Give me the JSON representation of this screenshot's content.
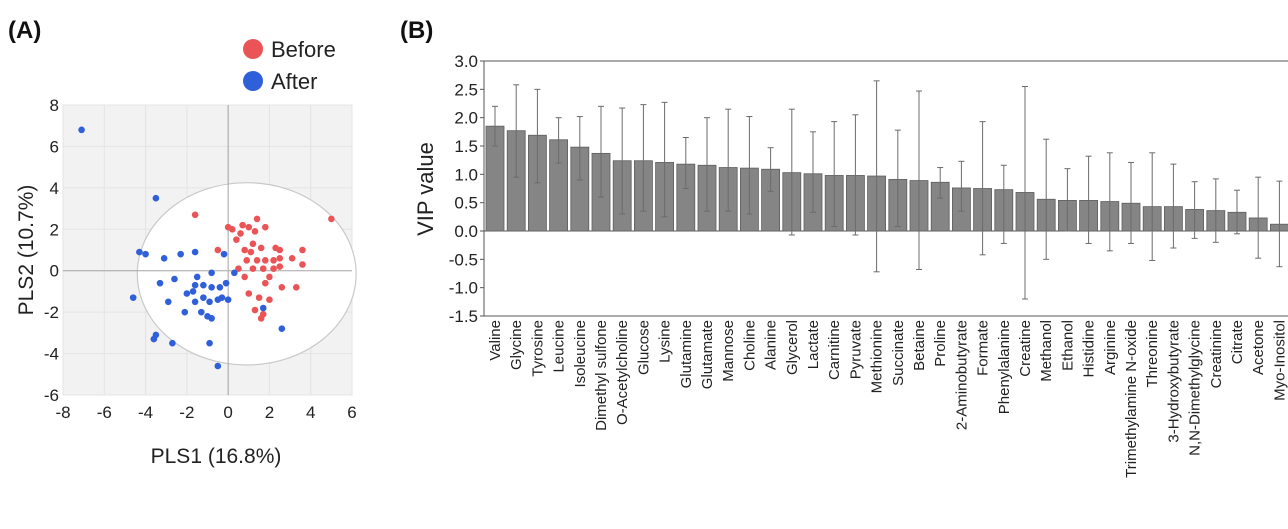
{
  "panels": {
    "a_label": "(A)",
    "b_label": "(B)"
  },
  "colors": {
    "before": "#EB5456",
    "after": "#2F5FD9",
    "bar": "#858585",
    "plot_bg": "#F2F2F2"
  },
  "chart_data": [
    {
      "type": "scatter",
      "xlabel": "PLS1 (16.8%)",
      "ylabel": "PLS2 (10.7%)",
      "xlim": [
        -8,
        6
      ],
      "ylim": [
        -6,
        8
      ],
      "x_ticks": [
        "-8",
        "-6",
        "-4",
        "-2",
        "0",
        "2",
        "4",
        "6"
      ],
      "y_ticks": [
        "-6",
        "-4",
        "-2",
        "0",
        "2",
        "4",
        "6",
        "8"
      ],
      "legend": {
        "position": "top-right"
      },
      "ellipse": {
        "cx": 0.9,
        "cy": -0.15,
        "rx": 5.3,
        "ry": 4.4
      },
      "series": [
        {
          "name": "Before",
          "points": [
            [
              -1.6,
              2.7
            ],
            [
              -0.5,
              1.0
            ],
            [
              0,
              2.1
            ],
            [
              0.2,
              2.0
            ],
            [
              0.7,
              2.2
            ],
            [
              0.6,
              1.8
            ],
            [
              1.0,
              2.1
            ],
            [
              1.4,
              2.5
            ],
            [
              1.3,
              1.9
            ],
            [
              1.8,
              2.1
            ],
            [
              0.4,
              1.5
            ],
            [
              1.2,
              1.3
            ],
            [
              1.6,
              1.1
            ],
            [
              2.3,
              1.1
            ],
            [
              2.5,
              1.0
            ],
            [
              3.6,
              1.0
            ],
            [
              5.0,
              2.5
            ],
            [
              0.8,
              1.0
            ],
            [
              1.1,
              0.9
            ],
            [
              1.8,
              0.5
            ],
            [
              1.4,
              0.5
            ],
            [
              0.9,
              0.5
            ],
            [
              2.2,
              0.5
            ],
            [
              2.5,
              0.6
            ],
            [
              3.1,
              0.6
            ],
            [
              3.6,
              0.3
            ],
            [
              0.5,
              0.1
            ],
            [
              1.2,
              0.1
            ],
            [
              1.7,
              0.1
            ],
            [
              2.2,
              0.1
            ],
            [
              2.5,
              0.2
            ],
            [
              0.8,
              -0.3
            ],
            [
              2.0,
              -0.3
            ],
            [
              3.3,
              -0.8
            ],
            [
              1.8,
              -0.6
            ],
            [
              2.6,
              -0.8
            ],
            [
              1.0,
              -1.1
            ],
            [
              1.5,
              -1.3
            ],
            [
              2.0,
              -1.4
            ],
            [
              1.3,
              -1.9
            ],
            [
              1.7,
              -2.1
            ],
            [
              1.6,
              -2.3
            ]
          ]
        },
        {
          "name": "After",
          "points": [
            [
              -7.1,
              6.8
            ],
            [
              -3.5,
              3.5
            ],
            [
              -4.3,
              0.9
            ],
            [
              -4.0,
              0.8
            ],
            [
              -3.1,
              0.6
            ],
            [
              -2.3,
              0.8
            ],
            [
              -1.6,
              0.9
            ],
            [
              -0.2,
              0.8
            ],
            [
              -3.3,
              -0.6
            ],
            [
              -2.6,
              -0.4
            ],
            [
              -1.5,
              -0.3
            ],
            [
              -0.8,
              -0.1
            ],
            [
              -2.0,
              -1.1
            ],
            [
              -1.6,
              -0.7
            ],
            [
              -1.2,
              -0.7
            ],
            [
              -0.8,
              -0.8
            ],
            [
              -0.4,
              -0.8
            ],
            [
              -0.1,
              -0.6
            ],
            [
              0.3,
              -0.1
            ],
            [
              -1.7,
              -1.0
            ],
            [
              -1.2,
              -1.3
            ],
            [
              -1.6,
              -1.5
            ],
            [
              -0.9,
              -1.5
            ],
            [
              -0.5,
              -1.4
            ],
            [
              -0.3,
              -1.3
            ],
            [
              0,
              -1.4
            ],
            [
              -4.6,
              -1.3
            ],
            [
              -2.9,
              -1.5
            ],
            [
              -2.1,
              -2.0
            ],
            [
              -1.0,
              -2.2
            ],
            [
              -0.8,
              -2.3
            ],
            [
              -1.3,
              -2.0
            ],
            [
              1.7,
              -1.8
            ],
            [
              2.6,
              -2.8
            ],
            [
              -3.5,
              -3.1
            ],
            [
              -3.6,
              -3.3
            ],
            [
              -2.7,
              -3.5
            ],
            [
              -0.9,
              -3.5
            ],
            [
              -0.5,
              -4.6
            ]
          ]
        }
      ]
    },
    {
      "type": "bar",
      "ylabel": "VIP value",
      "ylim": [
        -1.5,
        3.0
      ],
      "y_ticks": [
        "3.0",
        "2.5",
        "2.0",
        "1.5",
        "1.0",
        "0.5",
        "0.0",
        "-0.5",
        "-1.0",
        "-1.5"
      ],
      "categories": [
        "Valine",
        "Glycine",
        "Tyrosine",
        "Leucine",
        "Isoleucine",
        "Dimethyl sulfone",
        "O-Acetylcholine",
        "Glucose",
        "Lysine",
        "Glutamine",
        "Glutamate",
        "Mannose",
        "Choline",
        "Alanine",
        "Glycerol",
        "Lactate",
        "Carnitine",
        "Pyruvate",
        "Methionine",
        "Succinate",
        "Betaine",
        "Proline",
        "2-Aminobutyrate",
        "Formate",
        "Phenylalanine",
        "Creatine",
        "Methanol",
        "Ethanol",
        "Histidine",
        "Arginine",
        "Trimethylamine N-oxide",
        "Threonine",
        "3-Hydroxybutyrate",
        "N,N-Dimethylglycine",
        "Creatinine",
        "Citrate",
        "Acetone",
        "Myo-Inositol"
      ],
      "values": [
        1.85,
        1.77,
        1.69,
        1.61,
        1.48,
        1.37,
        1.24,
        1.24,
        1.21,
        1.18,
        1.16,
        1.12,
        1.11,
        1.09,
        1.03,
        1.01,
        0.98,
        0.98,
        0.97,
        0.91,
        0.89,
        0.86,
        0.76,
        0.75,
        0.73,
        0.68,
        0.56,
        0.54,
        0.54,
        0.52,
        0.49,
        0.43,
        0.43,
        0.38,
        0.36,
        0.33,
        0.23,
        0.12
      ],
      "err_low": [
        1.5,
        0.95,
        0.85,
        1.2,
        0.9,
        0.6,
        0.3,
        0.35,
        0.25,
        0.75,
        0.35,
        0.35,
        0.3,
        0.7,
        -0.07,
        0.33,
        0.08,
        -0.07,
        -0.72,
        0.08,
        -0.68,
        0.58,
        0.35,
        -0.42,
        -0.22,
        -1.2,
        -0.5,
        0.0,
        -0.22,
        -0.35,
        -0.22,
        -0.52,
        -0.3,
        -0.13,
        -0.2,
        -0.05,
        -0.48,
        -0.63
      ],
      "err_high": [
        2.2,
        2.58,
        2.5,
        2.0,
        2.02,
        2.2,
        2.17,
        2.23,
        2.27,
        1.65,
        2.0,
        2.15,
        2.02,
        1.47,
        2.15,
        1.75,
        1.93,
        2.05,
        2.65,
        1.78,
        2.47,
        1.12,
        1.23,
        1.93,
        1.16,
        2.55,
        1.62,
        1.1,
        1.32,
        1.38,
        1.21,
        1.38,
        1.18,
        0.87,
        0.92,
        0.72,
        0.95,
        0.88
      ]
    }
  ]
}
